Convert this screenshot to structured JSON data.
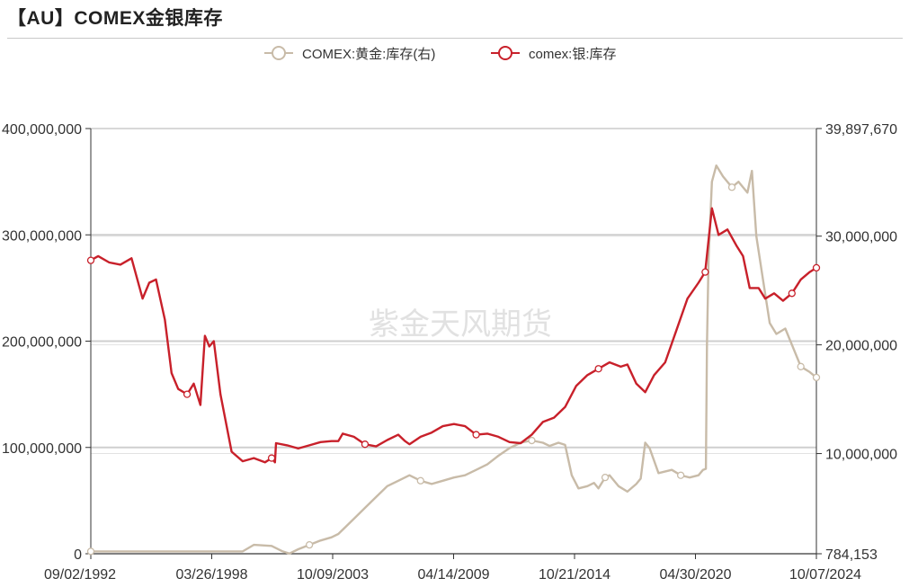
{
  "title": "【AU】COMEX金银库存",
  "watermark": "紫金天风期货",
  "chart_data": {
    "type": "line",
    "x_ticks": [
      "09/02/1992",
      "03/26/1998",
      "10/09/2003",
      "04/14/2009",
      "10/21/2014",
      "04/30/2020",
      "10/07/2024"
    ],
    "x_range": [
      1992.67,
      2025.3
    ],
    "y_left": {
      "ticks": [
        0,
        100000000,
        200000000,
        300000000,
        400000000
      ],
      "tick_labels": [
        "0",
        "100,000,000",
        "200,000,000",
        "300,000,000",
        "400,000,000"
      ],
      "range": [
        0,
        400000000
      ]
    },
    "y_right": {
      "ticks": [
        784153,
        10000000,
        20000000,
        30000000,
        39897670
      ],
      "tick_labels": [
        "784,153",
        "10,000,000",
        "20,000,000",
        "30,000,000",
        "39,897,670"
      ],
      "range": [
        784153,
        39897670
      ]
    },
    "legend_position": "top-center",
    "series": [
      {
        "name": "COMEX:黄金:库存(右)",
        "axis": "right",
        "color": "#c8bba8",
        "points": [
          [
            1992.67,
            1000000
          ],
          [
            1995.0,
            1000000
          ],
          [
            1997.0,
            1000000
          ],
          [
            1998.23,
            1000000
          ],
          [
            1999.5,
            1000000
          ],
          [
            2000.0,
            1600000
          ],
          [
            2000.8,
            1500000
          ],
          [
            2001.3,
            1000000
          ],
          [
            2001.6,
            800000
          ],
          [
            2002.0,
            1200000
          ],
          [
            2002.5,
            1600000
          ],
          [
            2003.0,
            2000000
          ],
          [
            2003.5,
            2300000
          ],
          [
            2003.8,
            2600000
          ],
          [
            2004.5,
            4000000
          ],
          [
            2005.0,
            5000000
          ],
          [
            2005.5,
            6000000
          ],
          [
            2006.0,
            7000000
          ],
          [
            2006.5,
            7500000
          ],
          [
            2007.0,
            8000000
          ],
          [
            2007.5,
            7500000
          ],
          [
            2008.0,
            7200000
          ],
          [
            2008.5,
            7500000
          ],
          [
            2009.0,
            7800000
          ],
          [
            2009.5,
            8000000
          ],
          [
            2010.0,
            8500000
          ],
          [
            2010.5,
            9000000
          ],
          [
            2011.0,
            9800000
          ],
          [
            2011.5,
            10500000
          ],
          [
            2012.0,
            11000000
          ],
          [
            2012.5,
            11200000
          ],
          [
            2013.0,
            11000000
          ],
          [
            2013.3,
            10700000
          ],
          [
            2013.7,
            11000000
          ],
          [
            2014.0,
            10800000
          ],
          [
            2014.3,
            8000000
          ],
          [
            2014.6,
            6800000
          ],
          [
            2015.0,
            7000000
          ],
          [
            2015.3,
            7300000
          ],
          [
            2015.5,
            6800000
          ],
          [
            2015.8,
            7800000
          ],
          [
            2016.0,
            8000000
          ],
          [
            2016.4,
            7000000
          ],
          [
            2016.8,
            6500000
          ],
          [
            2017.2,
            7200000
          ],
          [
            2017.4,
            7700000
          ],
          [
            2017.6,
            11000000
          ],
          [
            2017.8,
            10500000
          ],
          [
            2018.2,
            8200000
          ],
          [
            2018.8,
            8500000
          ],
          [
            2019.2,
            8000000
          ],
          [
            2019.6,
            7800000
          ],
          [
            2020.0,
            8000000
          ],
          [
            2020.2,
            8500000
          ],
          [
            2020.33,
            8600000
          ],
          [
            2020.38,
            20000000
          ],
          [
            2020.45,
            28000000
          ],
          [
            2020.6,
            35000000
          ],
          [
            2020.8,
            36500000
          ],
          [
            2021.1,
            35500000
          ],
          [
            2021.5,
            34500000
          ],
          [
            2021.8,
            35000000
          ],
          [
            2022.2,
            34000000
          ],
          [
            2022.4,
            36000000
          ],
          [
            2022.6,
            30000000
          ],
          [
            2022.9,
            26000000
          ],
          [
            2023.2,
            22000000
          ],
          [
            2023.5,
            21000000
          ],
          [
            2023.9,
            21500000
          ],
          [
            2024.2,
            20000000
          ],
          [
            2024.6,
            18000000
          ],
          [
            2025.0,
            17500000
          ],
          [
            2025.3,
            17000000
          ]
        ]
      },
      {
        "name": "comex:银:库存",
        "axis": "left",
        "color": "#c8202a",
        "points": [
          [
            1992.67,
            276000000
          ],
          [
            1993.0,
            280000000
          ],
          [
            1993.5,
            274000000
          ],
          [
            1994.0,
            272000000
          ],
          [
            1994.5,
            278000000
          ],
          [
            1995.0,
            240000000
          ],
          [
            1995.3,
            255000000
          ],
          [
            1995.6,
            258000000
          ],
          [
            1996.0,
            220000000
          ],
          [
            1996.3,
            170000000
          ],
          [
            1996.6,
            155000000
          ],
          [
            1997.0,
            150000000
          ],
          [
            1997.3,
            160000000
          ],
          [
            1997.6,
            140000000
          ],
          [
            1997.8,
            205000000
          ],
          [
            1998.0,
            195000000
          ],
          [
            1998.2,
            200000000
          ],
          [
            1998.5,
            150000000
          ],
          [
            1999.0,
            96000000
          ],
          [
            1999.5,
            87000000
          ],
          [
            2000.0,
            90000000
          ],
          [
            2000.5,
            86000000
          ],
          [
            2000.8,
            90000000
          ],
          [
            2000.95,
            86000000
          ],
          [
            2001.0,
            104000000
          ],
          [
            2001.5,
            102000000
          ],
          [
            2002.0,
            99000000
          ],
          [
            2002.5,
            102000000
          ],
          [
            2003.0,
            105000000
          ],
          [
            2003.5,
            106000000
          ],
          [
            2003.8,
            106000000
          ],
          [
            2004.0,
            113000000
          ],
          [
            2004.5,
            110000000
          ],
          [
            2005.0,
            103000000
          ],
          [
            2005.5,
            101000000
          ],
          [
            2006.0,
            107000000
          ],
          [
            2006.5,
            112000000
          ],
          [
            2006.8,
            106000000
          ],
          [
            2007.0,
            103000000
          ],
          [
            2007.5,
            110000000
          ],
          [
            2008.0,
            114000000
          ],
          [
            2008.5,
            120000000
          ],
          [
            2009.0,
            122000000
          ],
          [
            2009.5,
            120000000
          ],
          [
            2010.0,
            112000000
          ],
          [
            2010.5,
            113000000
          ],
          [
            2011.0,
            110000000
          ],
          [
            2011.5,
            105000000
          ],
          [
            2012.0,
            104000000
          ],
          [
            2012.5,
            112000000
          ],
          [
            2013.0,
            124000000
          ],
          [
            2013.5,
            128000000
          ],
          [
            2014.0,
            138000000
          ],
          [
            2014.5,
            158000000
          ],
          [
            2015.0,
            168000000
          ],
          [
            2015.5,
            174000000
          ],
          [
            2016.0,
            180000000
          ],
          [
            2016.5,
            176000000
          ],
          [
            2016.8,
            178000000
          ],
          [
            2017.2,
            160000000
          ],
          [
            2017.6,
            152000000
          ],
          [
            2018.0,
            168000000
          ],
          [
            2018.5,
            180000000
          ],
          [
            2019.0,
            210000000
          ],
          [
            2019.5,
            240000000
          ],
          [
            2020.0,
            255000000
          ],
          [
            2020.3,
            265000000
          ],
          [
            2020.6,
            325000000
          ],
          [
            2020.9,
            300000000
          ],
          [
            2021.3,
            305000000
          ],
          [
            2021.7,
            290000000
          ],
          [
            2022.0,
            280000000
          ],
          [
            2022.3,
            250000000
          ],
          [
            2022.7,
            250000000
          ],
          [
            2023.0,
            240000000
          ],
          [
            2023.4,
            245000000
          ],
          [
            2023.8,
            238000000
          ],
          [
            2024.2,
            245000000
          ],
          [
            2024.6,
            258000000
          ],
          [
            2025.0,
            265000000
          ],
          [
            2025.3,
            269000000
          ]
        ]
      }
    ]
  }
}
